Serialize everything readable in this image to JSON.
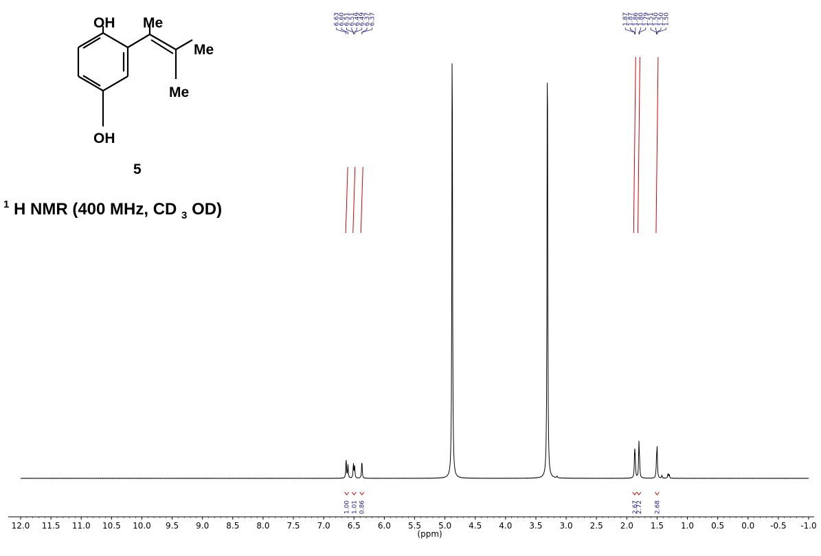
{
  "chart_data": {
    "type": "line",
    "title": "1H NMR (400 MHz, CD3OD)",
    "title_parts": {
      "sup": "1",
      "a": "H NMR (400 MHz, CD",
      "sub": "3",
      "b": "OD)"
    },
    "xlabel": "(ppm)",
    "xlim": [
      12.0,
      -1.0
    ],
    "xticks": [
      "12.0",
      "11.5",
      "11.0",
      "10.5",
      "10.0",
      "9.5",
      "9.0",
      "8.5",
      "8.0",
      "7.5",
      "7.0",
      "6.5",
      "6.0",
      "5.5",
      "5.0",
      "4.5",
      "4.0",
      "3.5",
      "3.0",
      "2.5",
      "2.0",
      "1.5",
      "1.0",
      "0.5",
      "0.0",
      "-0.5",
      "-1.0"
    ],
    "peaks": [
      {
        "ppm": 6.63,
        "height": 0.042
      },
      {
        "ppm": 6.6,
        "height": 0.028
      },
      {
        "ppm": 6.51,
        "height": 0.03
      },
      {
        "ppm": 6.49,
        "height": 0.026
      },
      {
        "ppm": 6.37,
        "height": 0.038
      },
      {
        "ppm": 4.88,
        "height": 1.0
      },
      {
        "ppm": 3.31,
        "height": 0.98
      },
      {
        "ppm": 3.15,
        "height": 0.004
      },
      {
        "ppm": 1.87,
        "height": 0.058
      },
      {
        "ppm": 1.86,
        "height": 0.03
      },
      {
        "ppm": 1.8,
        "height": 0.07
      },
      {
        "ppm": 1.79,
        "height": 0.03
      },
      {
        "ppm": 1.51,
        "height": 0.03
      },
      {
        "ppm": 1.5,
        "height": 0.062
      },
      {
        "ppm": 1.42,
        "height": 0.006
      },
      {
        "ppm": 1.32,
        "height": 0.01
      },
      {
        "ppm": 1.3,
        "height": 0.008
      }
    ],
    "peak_label_groups": [
      {
        "labels": [
          "6.63",
          "6.60",
          "6.51",
          "6.51",
          "6.49",
          "6.49",
          "6.37",
          "6.37"
        ],
        "ppm": [
          6.63,
          6.6,
          6.51,
          6.51,
          6.49,
          6.49,
          6.37,
          6.37
        ]
      },
      {
        "labels": [
          "1.87",
          "1.87",
          "1.86",
          "1.80",
          "1.79",
          "1.51",
          "1.50",
          "1.50",
          "1.50"
        ],
        "ppm": [
          1.87,
          1.87,
          1.86,
          1.8,
          1.79,
          1.51,
          1.5,
          1.5,
          1.5
        ]
      }
    ],
    "integrals": [
      {
        "ppm": 6.62,
        "value": "1.00"
      },
      {
        "ppm": 6.5,
        "value": "1.01"
      },
      {
        "ppm": 6.37,
        "value": "0.86"
      },
      {
        "ppm": 1.87,
        "value": "2.67"
      },
      {
        "ppm": 1.8,
        "value": "2.72"
      },
      {
        "ppm": 1.5,
        "value": "2.68"
      }
    ]
  },
  "structure": {
    "oh_top": "OH",
    "oh_bottom": "OH",
    "me1": "Me",
    "me2": "Me",
    "me3": "Me",
    "compound_number": "5"
  },
  "colors": {
    "spectrum": "#000000",
    "integral": "#cc0000",
    "labels": "#1a1a8c"
  }
}
